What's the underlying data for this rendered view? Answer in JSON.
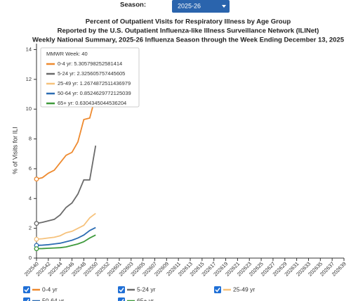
{
  "controls": {
    "season_label": "Season:",
    "season_value": "2025-26"
  },
  "chart_data": {
    "type": "line",
    "title": "Percent of Outpatient Visits for Respiratory Illness by Age Group",
    "subtitle": "Reported by the U.S. Outpatient Influenza-like Illness Surveillance Network (ILINet)",
    "subtitle2": "Weekly National Summary, 2025-26 Influenza Season through the Week Ending December 13, 2025",
    "y_label": "% of Visits for ILI",
    "categories": [
      "202540",
      null,
      "202542",
      null,
      "202544",
      null,
      "202546",
      null,
      "202548",
      null,
      "202550",
      null,
      "202552",
      null,
      "202601",
      null,
      "202603",
      null,
      "202605",
      null,
      "202607",
      null,
      "202609",
      null,
      "202611",
      null,
      "202613",
      null,
      "202615",
      null,
      "202617",
      null,
      "202619",
      null,
      "202621",
      null,
      "202623",
      null,
      "202625",
      null,
      "202627",
      null,
      "202629",
      null,
      "202631",
      null,
      "202633",
      null,
      "202635",
      null,
      "202637",
      null,
      "202639"
    ],
    "series": [
      {
        "name": "0-4 yr",
        "color": "#ee8a2f",
        "values": [
          5.305798252581414,
          5.4,
          5.7,
          5.9,
          6.4,
          6.9,
          7.1,
          7.8,
          9.3,
          9.4,
          10.9,
          null,
          null,
          null,
          null,
          null,
          null,
          null,
          null,
          null,
          null,
          null,
          null,
          null,
          null,
          null,
          null,
          null,
          null,
          null,
          null,
          null,
          null,
          null,
          null,
          null,
          null,
          null,
          null,
          null,
          null,
          null,
          null,
          null,
          null,
          null,
          null,
          null,
          null,
          null,
          null,
          null,
          null
        ]
      },
      {
        "name": "5-24 yr",
        "color": "#6b6b6b",
        "values": [
          2.325605757445605,
          2.4,
          2.5,
          2.6,
          2.9,
          3.4,
          3.7,
          4.3,
          5.25,
          5.25,
          7.55,
          null,
          null,
          null,
          null,
          null,
          null,
          null,
          null,
          null,
          null,
          null,
          null,
          null,
          null,
          null,
          null,
          null,
          null,
          null,
          null,
          null,
          null,
          null,
          null,
          null,
          null,
          null,
          null,
          null,
          null,
          null,
          null,
          null,
          null,
          null,
          null,
          null,
          null,
          null,
          null,
          null,
          null
        ]
      },
      {
        "name": "25-49 yr",
        "color": "#f6c27c",
        "values": [
          1.2674872511436979,
          1.3,
          1.35,
          1.4,
          1.5,
          1.7,
          1.8,
          2.0,
          2.2,
          2.7,
          3.0,
          null,
          null,
          null,
          null,
          null,
          null,
          null,
          null,
          null,
          null,
          null,
          null,
          null,
          null,
          null,
          null,
          null,
          null,
          null,
          null,
          null,
          null,
          null,
          null,
          null,
          null,
          null,
          null,
          null,
          null,
          null,
          null,
          null,
          null,
          null,
          null,
          null,
          null,
          null,
          null,
          null,
          null
        ]
      },
      {
        "name": "50-64 yr",
        "color": "#2d6db3",
        "values": [
          0.8524629772125039,
          0.87,
          0.9,
          0.95,
          1.0,
          1.1,
          1.2,
          1.35,
          1.55,
          1.85,
          2.05,
          null,
          null,
          null,
          null,
          null,
          null,
          null,
          null,
          null,
          null,
          null,
          null,
          null,
          null,
          null,
          null,
          null,
          null,
          null,
          null,
          null,
          null,
          null,
          null,
          null,
          null,
          null,
          null,
          null,
          null,
          null,
          null,
          null,
          null,
          null,
          null,
          null,
          null,
          null,
          null,
          null,
          null
        ]
      },
      {
        "name": "65+ yr",
        "color": "#3f9a3c",
        "values": [
          0.6304345044536204,
          0.64,
          0.66,
          0.68,
          0.7,
          0.75,
          0.85,
          0.95,
          1.1,
          1.35,
          1.55,
          null,
          null,
          null,
          null,
          null,
          null,
          null,
          null,
          null,
          null,
          null,
          null,
          null,
          null,
          null,
          null,
          null,
          null,
          null,
          null,
          null,
          null,
          null,
          null,
          null,
          null,
          null,
          null,
          null,
          null,
          null,
          null,
          null,
          null,
          null,
          null,
          null,
          null,
          null,
          null,
          null,
          null
        ]
      }
    ],
    "ylim": [
      0,
      14.4
    ],
    "yticks": [
      0,
      2,
      4,
      6,
      8,
      10,
      12,
      14
    ],
    "tooltip": {
      "title": "MMWR Week: 40",
      "items": [
        "0-4 yr: 5.305798252581414",
        "5-24 yr: 2.325605757445605",
        "25-49 yr: 1.2674872511436979",
        "50-64 yr: 0.8524629772125039",
        "65+ yr: 0.6304345044536204"
      ]
    }
  }
}
